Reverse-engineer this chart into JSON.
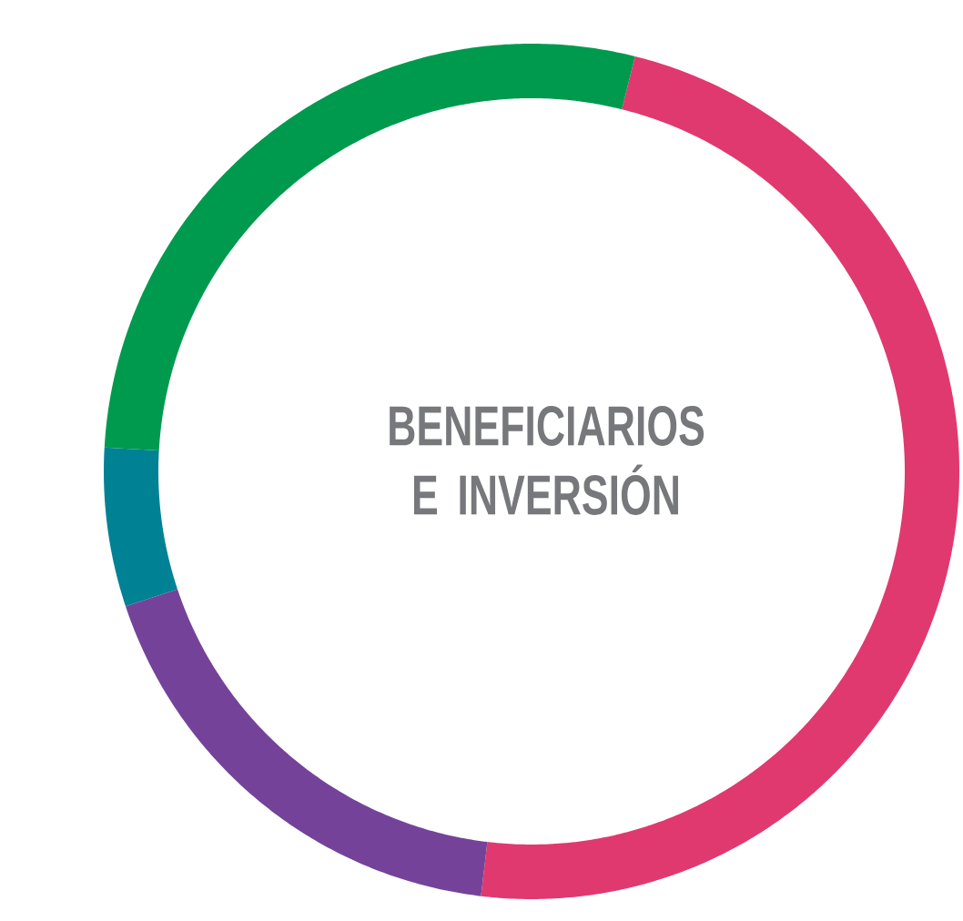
{
  "chart_data": {
    "type": "donut",
    "title": "BENEFICIARIOS E INVERSIÓN",
    "categories": [
      null,
      null,
      null,
      null
    ],
    "values": [
      48,
      18,
      6,
      28
    ],
    "colors": [
      "#e0396f",
      "#744399",
      "#008294",
      "#009a4e"
    ]
  }
}
